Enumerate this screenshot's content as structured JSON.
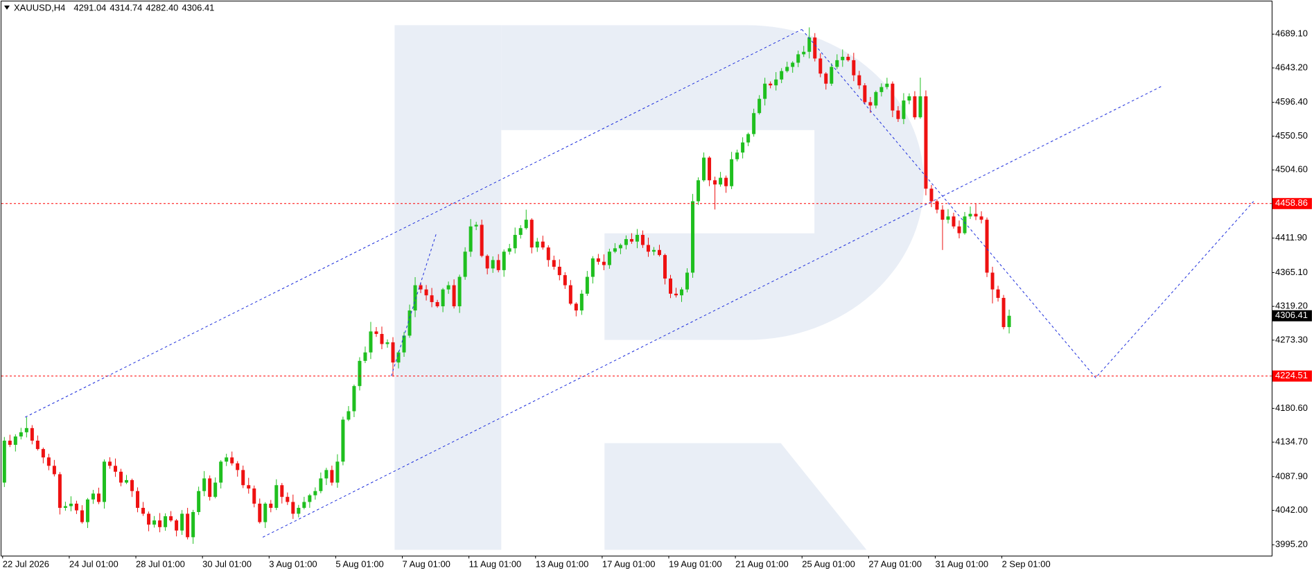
{
  "chart_data": {
    "type": "candlestick",
    "title": "XAUUSD,H4",
    "header_values": [
      "4291.04",
      "4314.74",
      "4282.40",
      "4306.41"
    ],
    "up_color": "#1fbf1f",
    "down_color": "#ee1111",
    "grid": false,
    "ylim": [
      3980.4,
      4733.6
    ],
    "yticks": [
      {
        "value": 4689.1,
        "label": "4689.10"
      },
      {
        "value": 4643.2,
        "label": "4643.20"
      },
      {
        "value": 4596.4,
        "label": "4596.40"
      },
      {
        "value": 4550.5,
        "label": "4550.50"
      },
      {
        "value": 4504.6,
        "label": "4504.60"
      },
      {
        "value": 4411.9,
        "label": "4411.90"
      },
      {
        "value": 4365.1,
        "label": "4365.10"
      },
      {
        "value": 4319.2,
        "label": "4319.20"
      },
      {
        "value": 4273.3,
        "label": "4273.30"
      },
      {
        "value": 4180.6,
        "label": "4180.60"
      },
      {
        "value": 4134.7,
        "label": "4134.70"
      },
      {
        "value": 4087.9,
        "label": "4087.90"
      },
      {
        "value": 4042,
        "label": "4042.00"
      },
      {
        "value": 3995.2,
        "label": "3995.20"
      }
    ],
    "levels": [
      {
        "value": 4458.86,
        "color": "#ff0000"
      },
      {
        "value": 4224.51,
        "color": "#ff0000"
      }
    ],
    "categories": [
      "22 Jul 2026",
      null,
      null,
      null,
      null,
      null,
      null,
      null,
      null,
      null,
      null,
      null,
      "24 Jul 01:00",
      null,
      null,
      null,
      null,
      null,
      null,
      null,
      null,
      null,
      null,
      null,
      "28 Jul 01:00",
      null,
      null,
      null,
      null,
      null,
      null,
      null,
      null,
      null,
      null,
      null,
      "30 Jul 01:00",
      null,
      null,
      null,
      null,
      null,
      null,
      null,
      null,
      null,
      null,
      null,
      "3 Aug 01:00",
      null,
      null,
      null,
      null,
      null,
      null,
      null,
      null,
      null,
      null,
      null,
      "5 Aug 01:00",
      null,
      null,
      null,
      null,
      null,
      null,
      null,
      null,
      null,
      null,
      null,
      "7 Aug 01:00",
      null,
      null,
      null,
      null,
      null,
      null,
      null,
      null,
      null,
      null,
      null,
      "11 Aug 01:00",
      null,
      null,
      null,
      null,
      null,
      null,
      null,
      null,
      null,
      null,
      null,
      "13 Aug 01:00",
      null,
      null,
      null,
      null,
      null,
      null,
      null,
      null,
      null,
      null,
      null,
      "17 Aug 01:00",
      null,
      null,
      null,
      null,
      null,
      null,
      null,
      null,
      null,
      null,
      null,
      "19 Aug 01:00",
      null,
      null,
      null,
      null,
      null,
      null,
      null,
      null,
      null,
      null,
      null,
      "21 Aug 01:00",
      null,
      null,
      null,
      null,
      null,
      null,
      null,
      null,
      null,
      null,
      null,
      "25 Aug 01:00",
      null,
      null,
      null,
      null,
      null,
      null,
      null,
      null,
      null,
      null,
      null,
      "27 Aug 01:00",
      null,
      null,
      null,
      null,
      null,
      null,
      null,
      null,
      null,
      null,
      null,
      "31 Aug 01:00",
      null,
      null,
      null,
      null,
      null,
      null,
      null,
      null,
      null,
      null,
      null,
      "2 Sep 01:00",
      null
    ],
    "ohlc": [
      [
        4079.7,
        4141.7,
        4073.7,
        4136.7
      ],
      [
        4136.7,
        4144.7,
        4128.0,
        4131.0
      ],
      [
        4131.0,
        4145.4,
        4122.0,
        4142.4
      ],
      [
        4142.4,
        4154.1,
        4138.4,
        4148.1
      ],
      [
        4148.1,
        4168.7,
        4141.1,
        4153.8
      ],
      [
        4153.8,
        4157.8,
        4131.7,
        4136.7
      ],
      [
        4136.7,
        4143.7,
        4123.3,
        4125.3
      ],
      [
        4125.3,
        4127.3,
        4105.9,
        4113.9
      ],
      [
        4113.9,
        4118.9,
        4096.5,
        4102.5
      ],
      [
        4102.5,
        4110.5,
        4088.1,
        4091.1
      ],
      [
        4091.1,
        4094.1,
        4036.4,
        4045.4
      ],
      [
        4045.4,
        4053.7,
        4041.4,
        4047.7
      ],
      [
        4047.7,
        4061.1,
        4040.7,
        4051.1
      ],
      [
        4051.1,
        4055.1,
        4037.0,
        4042.0
      ],
      [
        4042.0,
        4049.0,
        4024.0,
        4026.0
      ],
      [
        4026.0,
        4058.8,
        4018.0,
        4056.8
      ],
      [
        4056.8,
        4069.8,
        4050.8,
        4064.8
      ],
      [
        4064.8,
        4072.8,
        4050.4,
        4053.4
      ],
      [
        4053.4,
        4111.2,
        4044.4,
        4108.2
      ],
      [
        4108.2,
        4114.2,
        4098.5,
        4102.5
      ],
      [
        4102.5,
        4112.5,
        4087.5,
        4094.5
      ],
      [
        4094.5,
        4098.5,
        4074.7,
        4079.7
      ],
      [
        4079.7,
        4090.1,
        4077.7,
        4083.1
      ],
      [
        4083.1,
        4085.1,
        4060.2,
        4068.2
      ],
      [
        4068.2,
        4073.2,
        4039.4,
        4045.4
      ],
      [
        4045.4,
        4053.4,
        4034.4,
        4037.4
      ],
      [
        4037.4,
        4040.4,
        4013.6,
        4022.6
      ],
      [
        4022.6,
        4034.3,
        4018.6,
        4028.3
      ],
      [
        4028.3,
        4038.3,
        4012.2,
        4019.2
      ],
      [
        4019.2,
        4038.0,
        4014.2,
        4034.0
      ],
      [
        4034.0,
        4041.0,
        4026.3,
        4028.3
      ],
      [
        4028.3,
        4030.3,
        4006.6,
        4014.6
      ],
      [
        4014.6,
        4042.4,
        4008.6,
        4037.4
      ],
      [
        4037.4,
        4045.4,
        4002.5,
        4005.5
      ],
      [
        4005.5,
        4042.7,
        3996.5,
        4039.7
      ],
      [
        4039.7,
        4074.2,
        4035.7,
        4068.2
      ],
      [
        4068.2,
        4095.4,
        4061.2,
        4085.4
      ],
      [
        4085.4,
        4089.4,
        4055.3,
        4060.3
      ],
      [
        4060.3,
        4086.7,
        4058.3,
        4079.7
      ],
      [
        4079.7,
        4110.2,
        4071.7,
        4108.2
      ],
      [
        4108.2,
        4118.9,
        4102.2,
        4113.9
      ],
      [
        4113.9,
        4121.9,
        4102.9,
        4105.9
      ],
      [
        4105.9,
        4108.9,
        4087.8,
        4096.8
      ],
      [
        4096.8,
        4102.8,
        4072.2,
        4076.2
      ],
      [
        4076.2,
        4086.2,
        4064.7,
        4071.7
      ],
      [
        4071.7,
        4075.7,
        4046.1,
        4051.1
      ],
      [
        4051.1,
        4058.1,
        4024.0,
        4026.0
      ],
      [
        4026.0,
        4053.1,
        4018.0,
        4051.1
      ],
      [
        4051.1,
        4056.1,
        4039.4,
        4045.4
      ],
      [
        4045.4,
        4084.2,
        4042.4,
        4076.2
      ],
      [
        4076.2,
        4079.2,
        4051.3,
        4060.3
      ],
      [
        4060.3,
        4066.3,
        4049.3,
        4053.4
      ],
      [
        4053.4,
        4063.4,
        4030.4,
        4037.4
      ],
      [
        4037.4,
        4049.4,
        4032.4,
        4045.4
      ],
      [
        4045.4,
        4060.4,
        4043.4,
        4053.4
      ],
      [
        4053.4,
        4064.5,
        4045.4,
        4062.5
      ],
      [
        4062.5,
        4073.2,
        4056.5,
        4068.2
      ],
      [
        4068.2,
        4093.4,
        4065.2,
        4085.4
      ],
      [
        4085.4,
        4099.8,
        4076.4,
        4096.8
      ],
      [
        4096.8,
        4102.8,
        4075.7,
        4079.7
      ],
      [
        4079.7,
        4118.2,
        4072.7,
        4108.2
      ],
      [
        4108.2,
        4169.3,
        4103.2,
        4165.3
      ],
      [
        4165.3,
        4183.7,
        4163.3,
        4176.7
      ],
      [
        4176.7,
        4212.9,
        4168.7,
        4210.9
      ],
      [
        4210.9,
        4250.1,
        4204.9,
        4245.1
      ],
      [
        4245.1,
        4264.6,
        4242.1,
        4256.6
      ],
      [
        4256.6,
        4298.1,
        4247.6,
        4285.1
      ],
      [
        4285.1,
        4291.1,
        4277.7,
        4281.7
      ],
      [
        4281.7,
        4291.7,
        4261.0,
        4268.0
      ],
      [
        4268.0,
        4274.3,
        4263.0,
        4270.3
      ],
      [
        4270.3,
        4277.3,
        4223.9,
        4242.9
      ],
      [
        4242.9,
        4258.6,
        4234.9,
        4256.6
      ],
      [
        4256.6,
        4284.4,
        4250.6,
        4279.4
      ],
      [
        4279.4,
        4321.6,
        4276.4,
        4313.6
      ],
      [
        4313.6,
        4358.9,
        4304.6,
        4347.9
      ],
      [
        4347.9,
        4351.9,
        4337.2,
        4342.2
      ],
      [
        4342.2,
        4348.2,
        4327.2,
        4334.2
      ],
      [
        4334.2,
        4344.2,
        4318.0,
        4325.0
      ],
      [
        4325.0,
        4328.0,
        4317.3,
        4319.3
      ],
      [
        4319.3,
        4344.2,
        4311.3,
        4342.2
      ],
      [
        4342.2,
        4352.9,
        4336.2,
        4347.9
      ],
      [
        4347.9,
        4355.9,
        4316.3,
        4319.3
      ],
      [
        4319.3,
        4362.3,
        4310.3,
        4359.3
      ],
      [
        4359.3,
        4399.5,
        4355.3,
        4393.5
      ],
      [
        4393.5,
        4437.8,
        4386.5,
        4427.8
      ],
      [
        4427.8,
        4434.0,
        4422.8,
        4430.0
      ],
      [
        4430.0,
        4437.0,
        4385.8,
        4387.8
      ],
      [
        4387.8,
        4389.8,
        4362.7,
        4370.7
      ],
      [
        4370.7,
        4387.1,
        4364.7,
        4382.1
      ],
      [
        4382.1,
        4390.1,
        4365.4,
        4368.4
      ],
      [
        4368.4,
        4396.5,
        4359.4,
        4393.5
      ],
      [
        4393.5,
        4404.1,
        4389.5,
        4398.1
      ],
      [
        4398.1,
        4426.3,
        4391.1,
        4416.3
      ],
      [
        4416.3,
        4429.5,
        4411.3,
        4425.5
      ],
      [
        4425.5,
        4450.6,
        4423.5,
        4436.9
      ],
      [
        4436.9,
        4438.9,
        4391.2,
        4399.2
      ],
      [
        4399.2,
        4412.2,
        4393.2,
        4407.2
      ],
      [
        4407.2,
        4415.2,
        4396.2,
        4399.2
      ],
      [
        4399.2,
        4402.2,
        4373.1,
        4382.1
      ],
      [
        4382.1,
        4388.1,
        4369.0,
        4373.0
      ],
      [
        4373.0,
        4383.0,
        4354.6,
        4361.6
      ],
      [
        4361.6,
        4365.6,
        4342.9,
        4347.9
      ],
      [
        4347.9,
        4354.9,
        4320.8,
        4322.8
      ],
      [
        4322.8,
        4324.8,
        4305.6,
        4313.6
      ],
      [
        4313.6,
        4341.4,
        4307.6,
        4336.4
      ],
      [
        4336.4,
        4367.3,
        4333.4,
        4359.3
      ],
      [
        4359.3,
        4387.4,
        4350.3,
        4384.4
      ],
      [
        4384.4,
        4390.4,
        4375.8,
        4379.8
      ],
      [
        4379.8,
        4389.8,
        4368.3,
        4375.3
      ],
      [
        4375.3,
        4397.5,
        4370.3,
        4393.5
      ],
      [
        4393.5,
        4405.1,
        4391.5,
        4398.1
      ],
      [
        4398.1,
        4404.6,
        4390.1,
        4402.6
      ],
      [
        4402.6,
        4415.6,
        4396.6,
        4410.6
      ],
      [
        4410.6,
        4418.6,
        4404.2,
        4407.2
      ],
      [
        4407.2,
        4424.3,
        4398.2,
        4416.3
      ],
      [
        4416.3,
        4422.3,
        4398.6,
        4402.6
      ],
      [
        4402.6,
        4412.6,
        4386.5,
        4393.5
      ],
      [
        4393.5,
        4399.8,
        4388.5,
        4395.8
      ],
      [
        4395.8,
        4402.8,
        4386.9,
        4388.9
      ],
      [
        4388.9,
        4390.9,
        4349.0,
        4357.0
      ],
      [
        4357.0,
        4362.0,
        4330.4,
        4336.4
      ],
      [
        4336.4,
        4344.4,
        4331.2,
        4334.2
      ],
      [
        4334.2,
        4345.2,
        4325.2,
        4342.2
      ],
      [
        4342.2,
        4371.0,
        4338.2,
        4365.0
      ],
      [
        4365.0,
        4472.0,
        4358.0,
        4462.0
      ],
      [
        4462.0,
        4494.5,
        4457.0,
        4490.5
      ],
      [
        4490.5,
        4528.3,
        4488.5,
        4521.3
      ],
      [
        4521.3,
        4523.3,
        4482.5,
        4490.5
      ],
      [
        4490.5,
        4495.5,
        4450.8,
        4484.8
      ],
      [
        4484.8,
        4501.9,
        4481.8,
        4493.9
      ],
      [
        4493.9,
        4496.9,
        4473.5,
        4482.5
      ],
      [
        4482.5,
        4529.1,
        4478.5,
        4519.1
      ],
      [
        4519.1,
        4532.2,
        4516.1,
        4528.2
      ],
      [
        4528.2,
        4548.9,
        4520.2,
        4541.9
      ],
      [
        4541.9,
        4555.3,
        4536.9,
        4553.3
      ],
      [
        4553.3,
        4587.8,
        4549.8,
        4581.8
      ],
      [
        4581.8,
        4606.2,
        4579.8,
        4601.2
      ],
      [
        4601.2,
        4629.8,
        4592.2,
        4621.8
      ],
      [
        4621.8,
        4624.8,
        4615.5,
        4619.5
      ],
      [
        4619.5,
        4637.5,
        4612.5,
        4627.5
      ],
      [
        4627.5,
        4642.9,
        4622.5,
        4638.9
      ],
      [
        4638.9,
        4651.6,
        4636.9,
        4644.6
      ],
      [
        4644.6,
        4652.3,
        4636.6,
        4650.3
      ],
      [
        4650.3,
        4666.7,
        4644.3,
        4661.7
      ],
      [
        4661.7,
        4673.1,
        4658.1,
        4665.1
      ],
      [
        4665.1,
        4698.3,
        4656.1,
        4684.5
      ],
      [
        4684.5,
        4690.5,
        4652.0,
        4656.0
      ],
      [
        4656.0,
        4663.0,
        4630.5,
        4635.5
      ],
      [
        4635.5,
        4637.5,
        4613.8,
        4621.8
      ],
      [
        4621.8,
        4649.6,
        4618.8,
        4644.6
      ],
      [
        4644.6,
        4661.7,
        4641.6,
        4653.7
      ],
      [
        4653.7,
        4668.3,
        4644.7,
        4658.3
      ],
      [
        4658.3,
        4662.3,
        4651.7,
        4653.7
      ],
      [
        4653.7,
        4663.7,
        4625.2,
        4633.2
      ],
      [
        4633.2,
        4639.2,
        4614.5,
        4619.5
      ],
      [
        4619.5,
        4622.5,
        4593.7,
        4596.7
      ],
      [
        4596.7,
        4603.7,
        4582.1,
        4592.1
      ],
      [
        4592.1,
        4612.4,
        4588.1,
        4610.4
      ],
      [
        4610.4,
        4622.2,
        4604.4,
        4617.2
      ],
      [
        4617.2,
        4629.8,
        4614.2,
        4621.8
      ],
      [
        4621.8,
        4624.8,
        4576.3,
        4585.3
      ],
      [
        4585.3,
        4591.3,
        4569.8,
        4573.8
      ],
      [
        4573.8,
        4608.9,
        4566.8,
        4598.9
      ],
      [
        4598.9,
        4608.6,
        4593.9,
        4604.6
      ],
      [
        4604.6,
        4611.6,
        4573.1,
        4576.1
      ],
      [
        4576.1,
        4630.0,
        4574.1,
        4604.6
      ],
      [
        4604.6,
        4612.6,
        4470.1,
        4479.1
      ],
      [
        4479.1,
        4484.1,
        4454.0,
        4462.0
      ],
      [
        4462.0,
        4464.6,
        4445.6,
        4450.6
      ],
      [
        4450.6,
        4456.6,
        4395.8,
        4436.9
      ],
      [
        4436.9,
        4451.4,
        4431.9,
        4441.4
      ],
      [
        4441.4,
        4446.4,
        4424.8,
        4427.8
      ],
      [
        4427.8,
        4435.8,
        4411.6,
        4418.6
      ],
      [
        4418.6,
        4447.4,
        4416.6,
        4441.4
      ],
      [
        4441.4,
        4454.9,
        4437.9,
        4444.9
      ],
      [
        4444.9,
        4458.9,
        4436.4,
        4441.4
      ],
      [
        4441.4,
        4448.4,
        4431.9,
        4436.9
      ],
      [
        4436.9,
        4439.9,
        4359.0,
        4365.0
      ],
      [
        4365.0,
        4373.0,
        4323.2,
        4342.2
      ],
      [
        4342.2,
        4347.2,
        4325.7,
        4330.7
      ],
      [
        4330.7,
        4334.7,
        4288.0,
        4291.0
      ],
      [
        4291.04,
        4314.74,
        4282.4,
        4306.41
      ]
    ]
  }
}
